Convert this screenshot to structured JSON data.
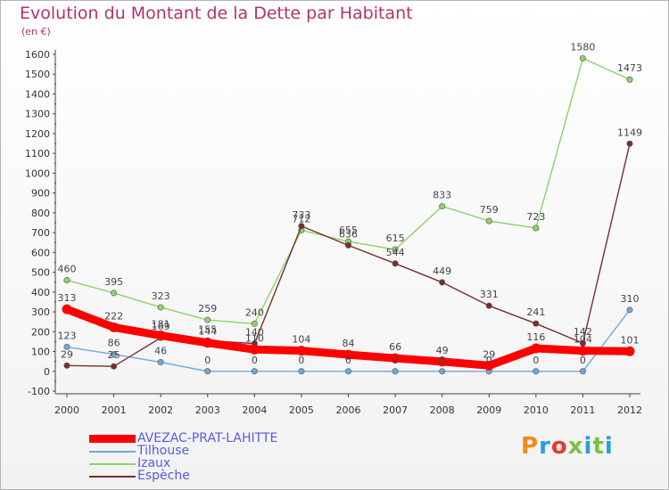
{
  "title": "Evolution du Montant de la Dette par Habitant",
  "unit": "(en €)",
  "logo": {
    "text": "Proxiti",
    "colors": [
      "#f08a1c",
      "#2a9fd6",
      "#e63b2e",
      "#7cc142",
      "#2a9fd6",
      "#7cc142",
      "#2a9fd6"
    ]
  },
  "chart_data": {
    "type": "line",
    "x": [
      2000,
      2001,
      2002,
      2003,
      2004,
      2005,
      2006,
      2007,
      2008,
      2009,
      2010,
      2011,
      2012
    ],
    "ylim": [
      -100,
      1600
    ],
    "yticks": [
      -100,
      0,
      100,
      200,
      300,
      400,
      500,
      600,
      700,
      800,
      900,
      1000,
      1100,
      1200,
      1300,
      1400,
      1500,
      1600
    ],
    "grid": false,
    "legend_position": "bottom-left",
    "series": [
      {
        "name": "AVEZAC-PRAT-LAHITTE",
        "color": "#ff0000",
        "values": [
          313,
          222,
          181,
          144,
          110,
          104,
          84,
          66,
          49,
          29,
          116,
          104,
          101
        ],
        "labels": [
          "313",
          "222",
          "181",
          "144",
          "110",
          "104",
          "84",
          "66",
          "49",
          "29",
          "116",
          "104",
          "101"
        ]
      },
      {
        "name": "Tilhouse",
        "color": "#6fa8dc",
        "values": [
          123,
          86,
          46,
          0,
          0,
          0,
          0,
          0,
          0,
          0,
          0,
          0,
          310
        ],
        "labels": [
          "123",
          "86",
          "46",
          "0",
          "0",
          "0",
          "0",
          "0",
          "0",
          "0",
          "0",
          "0",
          "310"
        ]
      },
      {
        "name": "Izaux",
        "color": "#8ed36a",
        "values": [
          460,
          395,
          323,
          259,
          240,
          712,
          655,
          615,
          833,
          759,
          723,
          1580,
          1473
        ],
        "labels": [
          "460",
          "395",
          "323",
          "259",
          "240",
          "712",
          "655",
          "615",
          "833",
          "759",
          "723",
          "1580",
          "1473"
        ]
      },
      {
        "name": "Espèche",
        "color": "#7a2e2e",
        "values": [
          29,
          25,
          169,
          155,
          140,
          733,
          636,
          544,
          449,
          331,
          241,
          142,
          1149
        ],
        "labels": [
          "29",
          "25",
          "169",
          "155",
          "140",
          "733",
          "636",
          "544",
          "449",
          "331",
          "241",
          "142",
          "1149"
        ]
      }
    ]
  }
}
